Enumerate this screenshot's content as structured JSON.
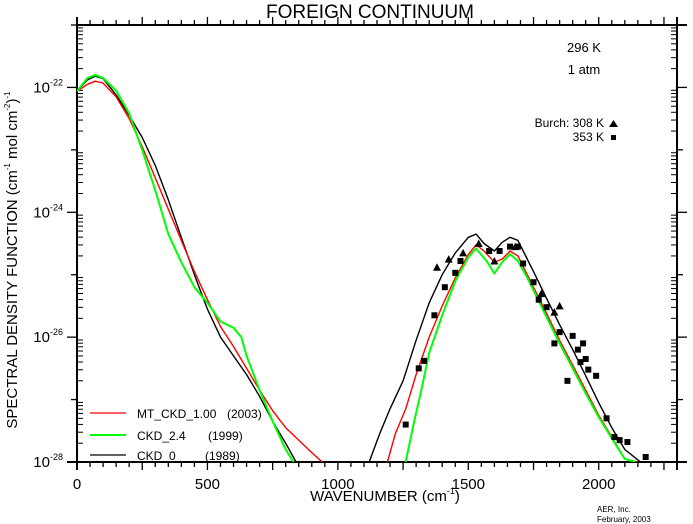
{
  "chart_data": {
    "type": "line",
    "title": "FOREIGN CONTINUUM",
    "xlabel": "WAVENUMBER (cm",
    "xlabel_sup": "-1",
    "xlabel_end": ")",
    "ylabel": "SPECTRAL DENSITY FUNCTION (cm",
    "ylabel_sup1": "-1",
    "ylabel_mid": " mol cm",
    "ylabel_sup2": "-2",
    "ylabel_end": ")",
    "ylabel_sup3": "-1",
    "xlim": [
      0,
      2300
    ],
    "ylim_log10": [
      -28,
      -21
    ],
    "yscale": "log",
    "x_ticks": [
      {
        "value": 0,
        "label": "0"
      },
      {
        "value": 500,
        "label": "500"
      },
      {
        "value": 1000,
        "label": "1000"
      },
      {
        "value": 1500,
        "label": "1500"
      },
      {
        "value": 2000,
        "label": "2000"
      }
    ],
    "y_ticks": [
      {
        "exp": -22,
        "base": "10",
        "sup": "-22"
      },
      {
        "exp": -24,
        "base": "10",
        "sup": "-24"
      },
      {
        "exp": -26,
        "base": "10",
        "sup": "-26"
      },
      {
        "exp": -28,
        "base": "10",
        "sup": "-28"
      }
    ],
    "annotations": {
      "temperature": "296 K",
      "pressure": "1 atm",
      "burch_label": "Burch: 308 K",
      "burch_353": "353 K",
      "credit_line1": "AER, Inc.",
      "credit_line2": "February, 2003"
    },
    "legend": {
      "placement": "bottom-left",
      "entries": [
        {
          "name": "MT_CKD_1.00",
          "year": "(2003)",
          "color": "#ff0000"
        },
        {
          "name": "CKD_2.4",
          "year": "(1999)",
          "color": "#00ff00"
        },
        {
          "name": "CKD_0",
          "year": "(1989)",
          "color": "#000000"
        }
      ]
    },
    "series": [
      {
        "name": "MT_CKD_1.00 (2003)",
        "color": "#ff0000",
        "segments": [
          {
            "x": [
              0,
              40,
              70,
              100,
              150,
              200,
              250,
              300,
              350,
              400,
              450,
              500,
              550,
              600,
              650,
              700,
              750,
              800,
              850,
              900,
              940
            ],
            "log10y": [
              -22.06,
              -21.95,
              -21.9,
              -21.93,
              -22.15,
              -22.5,
              -22.95,
              -23.45,
              -23.95,
              -24.45,
              -24.95,
              -25.4,
              -25.83,
              -26.15,
              -26.5,
              -26.85,
              -27.18,
              -27.45,
              -27.65,
              -27.85,
              -28.0
            ]
          },
          {
            "x": [
              1190,
              1220,
              1260,
              1300,
              1350,
              1400,
              1450,
              1500,
              1530,
              1560,
              1600,
              1630,
              1660,
              1690,
              1720,
              1750,
              1800,
              1850,
              1900,
              1950,
              2000,
              2050,
              2100,
              2150
            ],
            "log10y": [
              -28.0,
              -27.55,
              -27.15,
              -26.6,
              -26.0,
              -25.5,
              -25.05,
              -24.68,
              -24.52,
              -24.62,
              -24.8,
              -24.75,
              -24.62,
              -24.7,
              -24.95,
              -25.2,
              -25.62,
              -26.05,
              -26.45,
              -26.85,
              -27.25,
              -27.6,
              -27.95,
              -28.0
            ]
          }
        ]
      },
      {
        "name": "CKD_2.4 (1999)",
        "color": "#00ff00",
        "segments": [
          {
            "x": [
              0,
              40,
              70,
              100,
              150,
              200,
              250,
              300,
              350,
              400,
              450,
              500,
              550,
              600,
              630,
              650,
              700,
              750,
              800,
              830
            ],
            "log10y": [
              -22.06,
              -21.85,
              -21.8,
              -21.85,
              -22.05,
              -22.42,
              -23.0,
              -23.65,
              -24.35,
              -24.8,
              -25.2,
              -25.45,
              -25.75,
              -25.85,
              -26.0,
              -26.3,
              -26.85,
              -27.35,
              -27.8,
              -28.0
            ]
          },
          {
            "x": [
              1260,
              1290,
              1320,
              1350,
              1400,
              1450,
              1500,
              1530,
              1570,
              1600,
              1630,
              1660,
              1690,
              1720,
              1750,
              1800,
              1850,
              1900,
              1950,
              2000,
              2050,
              2100,
              2140
            ],
            "log10y": [
              -28.0,
              -27.4,
              -26.85,
              -26.25,
              -25.65,
              -25.1,
              -24.72,
              -24.58,
              -24.78,
              -24.98,
              -24.8,
              -24.67,
              -24.78,
              -25.0,
              -25.25,
              -25.68,
              -26.1,
              -26.5,
              -26.9,
              -27.28,
              -27.62,
              -27.95,
              -28.0
            ]
          }
        ]
      },
      {
        "name": "CKD_0 (1989)",
        "color": "#000000",
        "segments": [
          {
            "x": [
              0,
              40,
              70,
              100,
              150,
              200,
              250,
              300,
              350,
              400,
              450,
              500,
              550,
              600,
              650,
              700,
              750,
              800,
              840
            ],
            "log10y": [
              -22.06,
              -21.88,
              -21.82,
              -21.86,
              -22.12,
              -22.45,
              -22.8,
              -23.25,
              -23.8,
              -24.4,
              -25.0,
              -25.55,
              -26.0,
              -26.3,
              -26.6,
              -26.95,
              -27.35,
              -27.7,
              -28.0
            ]
          },
          {
            "x": [
              1120,
              1160,
              1200,
              1250,
              1300,
              1350,
              1400,
              1450,
              1500,
              1530,
              1560,
              1600,
              1630,
              1660,
              1690,
              1720,
              1750,
              1800,
              1850,
              1900,
              1950,
              2000,
              2050,
              2100,
              2160
            ],
            "log10y": [
              -28.0,
              -27.55,
              -27.15,
              -26.7,
              -26.05,
              -25.45,
              -25.0,
              -24.65,
              -24.4,
              -24.35,
              -24.5,
              -24.62,
              -24.48,
              -24.4,
              -24.45,
              -24.7,
              -24.95,
              -25.38,
              -25.8,
              -26.2,
              -26.62,
              -27.05,
              -27.45,
              -27.8,
              -28.0
            ]
          }
        ]
      }
    ],
    "markers": [
      {
        "name": "Burch 308 K",
        "shape": "triangle",
        "color": "#000000",
        "points": [
          {
            "x": 1380,
            "log10y": -24.88
          },
          {
            "x": 1425,
            "log10y": -24.75
          },
          {
            "x": 1480,
            "log10y": -24.65
          },
          {
            "x": 1540,
            "log10y": -24.5
          },
          {
            "x": 1600,
            "log10y": -24.78
          },
          {
            "x": 1680,
            "log10y": -24.55
          },
          {
            "x": 1780,
            "log10y": -25.3
          },
          {
            "x": 1830,
            "log10y": -25.6
          },
          {
            "x": 1850,
            "log10y": -25.5
          }
        ]
      },
      {
        "name": "Burch 353 K",
        "shape": "square",
        "color": "#000000",
        "points": [
          {
            "x": 1260,
            "log10y": -27.4
          },
          {
            "x": 1310,
            "log10y": -26.5
          },
          {
            "x": 1330,
            "log10y": -26.38
          },
          {
            "x": 1370,
            "log10y": -25.65
          },
          {
            "x": 1410,
            "log10y": -25.2
          },
          {
            "x": 1450,
            "log10y": -24.97
          },
          {
            "x": 1470,
            "log10y": -24.78
          },
          {
            "x": 1580,
            "log10y": -24.62
          },
          {
            "x": 1620,
            "log10y": -24.62
          },
          {
            "x": 1660,
            "log10y": -24.55
          },
          {
            "x": 1690,
            "log10y": -24.55
          },
          {
            "x": 1710,
            "log10y": -24.82
          },
          {
            "x": 1750,
            "log10y": -25.12
          },
          {
            "x": 1770,
            "log10y": -25.4
          },
          {
            "x": 1800,
            "log10y": -25.52
          },
          {
            "x": 1830,
            "log10y": -26.1
          },
          {
            "x": 1850,
            "log10y": -25.92
          },
          {
            "x": 1880,
            "log10y": -26.7
          },
          {
            "x": 1900,
            "log10y": -25.98
          },
          {
            "x": 1920,
            "log10y": -26.2
          },
          {
            "x": 1930,
            "log10y": -26.4
          },
          {
            "x": 1940,
            "log10y": -26.1
          },
          {
            "x": 1950,
            "log10y": -26.35
          },
          {
            "x": 1960,
            "log10y": -26.52
          },
          {
            "x": 1990,
            "log10y": -26.62
          },
          {
            "x": 2030,
            "log10y": -27.3
          },
          {
            "x": 2060,
            "log10y": -27.6
          },
          {
            "x": 2080,
            "log10y": -27.65
          },
          {
            "x": 2110,
            "log10y": -27.68
          },
          {
            "x": 2180,
            "log10y": -27.92
          }
        ]
      }
    ]
  }
}
